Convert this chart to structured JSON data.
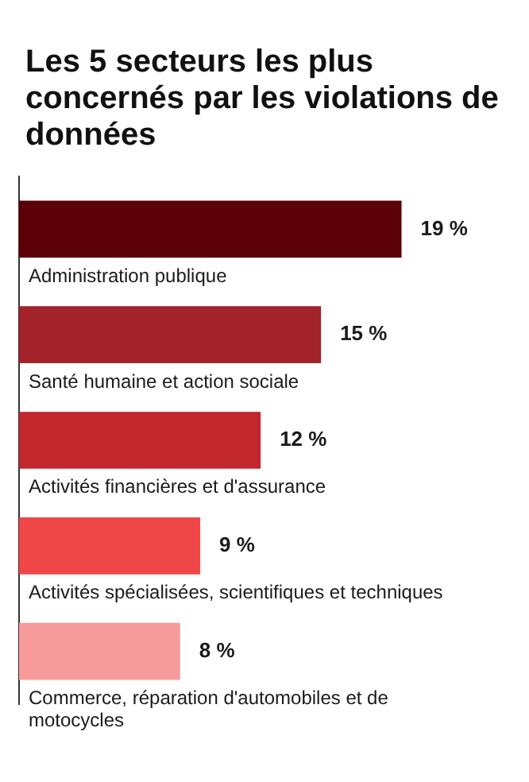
{
  "chart_data": {
    "type": "bar",
    "orientation": "horizontal",
    "title": "Les 5 secteurs les plus concernés par les violations de données",
    "categories": [
      "Administration publique",
      "Santé humaine et action sociale",
      "Activités financières et d'assurance",
      "Activités spécialisées, scientifiques et techniques",
      "Commerce, réparation d'automobiles et de motocycles"
    ],
    "values": [
      19,
      15,
      12,
      9,
      8
    ],
    "colors": [
      "#5c0008",
      "#a3232a",
      "#c1272d",
      "#ef4747",
      "#f79b9a"
    ],
    "value_labels": [
      "19 %",
      "15 %",
      "12 %",
      "9 %",
      "8 %"
    ]
  }
}
